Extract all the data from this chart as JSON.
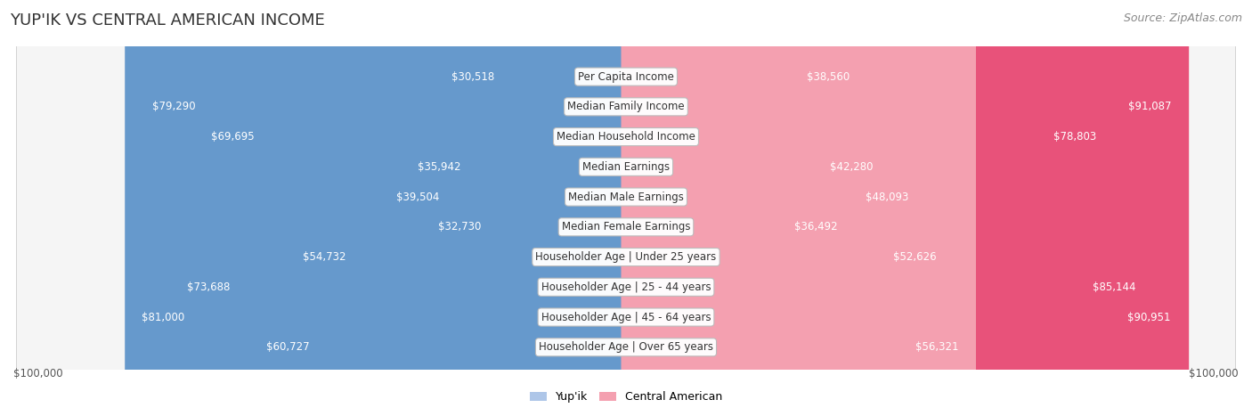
{
  "title": "YUP'IK VS CENTRAL AMERICAN INCOME",
  "source": "Source: ZipAtlas.com",
  "categories": [
    "Per Capita Income",
    "Median Family Income",
    "Median Household Income",
    "Median Earnings",
    "Median Male Earnings",
    "Median Female Earnings",
    "Householder Age | Under 25 years",
    "Householder Age | 25 - 44 years",
    "Householder Age | 45 - 64 years",
    "Householder Age | Over 65 years"
  ],
  "yupik_values": [
    30518,
    79290,
    69695,
    35942,
    39504,
    32730,
    54732,
    73688,
    81000,
    60727
  ],
  "central_values": [
    38560,
    91087,
    78803,
    42280,
    48093,
    36492,
    52626,
    85144,
    90951,
    56321
  ],
  "yupik_color_light": "#aec6e8",
  "yupik_color_dark": "#6699cc",
  "central_color_light": "#f4a0b0",
  "central_color_dark": "#e8527a",
  "label_color_inside": "#ffffff",
  "label_color_outside": "#555555",
  "row_bg_color": "#f5f5f5",
  "row_border_color": "#cccccc",
  "axis_max": 100000,
  "xlabel_left": "$100,000",
  "xlabel_right": "$100,000",
  "legend_yupik": "Yup'ik",
  "legend_central": "Central American",
  "background_color": "#ffffff",
  "title_fontsize": 13,
  "source_fontsize": 9,
  "label_fontsize": 8.5,
  "category_fontsize": 8.5,
  "large_threshold": 60000
}
